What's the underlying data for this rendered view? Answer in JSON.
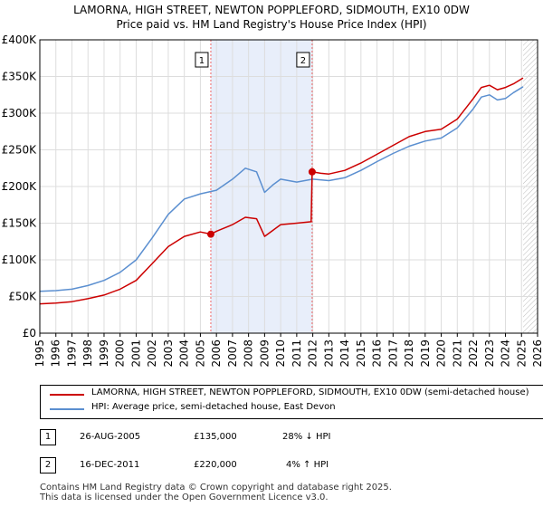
{
  "chart_data": {
    "type": "line",
    "title": "LAMORNA, HIGH STREET, NEWTON POPPLEFORD, SIDMOUTH, EX10 0DW",
    "subtitle": "Price paid vs. HM Land Registry's House Price Index (HPI)",
    "xlabel": "",
    "ylabel": "",
    "xlim": [
      1995,
      2026
    ],
    "ylim": [
      0,
      400000
    ],
    "grid": true,
    "x_ticks": [
      1995,
      1996,
      1997,
      1998,
      1999,
      2000,
      2001,
      2002,
      2003,
      2004,
      2005,
      2006,
      2007,
      2008,
      2009,
      2010,
      2011,
      2012,
      2013,
      2014,
      2015,
      2016,
      2017,
      2018,
      2019,
      2020,
      2021,
      2022,
      2023,
      2024,
      2025,
      2026
    ],
    "y_ticks": [
      {
        "value": 0,
        "label": "£0"
      },
      {
        "value": 50000,
        "label": "£50K"
      },
      {
        "value": 100000,
        "label": "£100K"
      },
      {
        "value": 150000,
        "label": "£150K"
      },
      {
        "value": 200000,
        "label": "£200K"
      },
      {
        "value": 250000,
        "label": "£250K"
      },
      {
        "value": 300000,
        "label": "£300K"
      },
      {
        "value": 350000,
        "label": "£350K"
      },
      {
        "value": 400000,
        "label": "£400K"
      }
    ],
    "shaded_span": {
      "from": 2005.65,
      "to": 2011.96
    },
    "future_hatch_from": 2025.1,
    "series": [
      {
        "name": "LAMORNA, HIGH STREET, NEWTON POPPLEFORD, SIDMOUTH, EX10 0DW (semi-detached house)",
        "color": "#cc0000",
        "x": [
          1995,
          1996,
          1997,
          1998,
          1999,
          2000,
          2001,
          2002,
          2003,
          2004,
          2005,
          2005.65,
          2006,
          2007,
          2007.8,
          2008.5,
          2009,
          2009.5,
          2010,
          2011,
          2011.9,
          2011.96,
          2012.5,
          2013,
          2014,
          2015,
          2016,
          2017,
          2018,
          2019,
          2020,
          2021,
          2022,
          2022.5,
          2023,
          2023.5,
          2024,
          2024.5,
          2025.1
        ],
        "values": [
          40000,
          41000,
          43000,
          47000,
          52000,
          60000,
          72000,
          95000,
          118000,
          132000,
          138000,
          135000,
          139000,
          148000,
          158000,
          156000,
          132000,
          140000,
          148000,
          150000,
          152000,
          220000,
          218000,
          217000,
          222000,
          232000,
          244000,
          256000,
          268000,
          275000,
          278000,
          292000,
          320000,
          335000,
          338000,
          332000,
          335000,
          340000,
          348000
        ]
      },
      {
        "name": "HPI: Average price, semi-detached house, East Devon",
        "color": "#5b8fd0",
        "x": [
          1995,
          1996,
          1997,
          1998,
          1999,
          2000,
          2001,
          2002,
          2003,
          2004,
          2005,
          2006,
          2007,
          2007.8,
          2008.5,
          2009,
          2009.5,
          2010,
          2011,
          2012,
          2013,
          2014,
          2015,
          2016,
          2017,
          2018,
          2019,
          2020,
          2021,
          2022,
          2022.5,
          2023,
          2023.5,
          2024,
          2024.5,
          2025.1
        ],
        "values": [
          57000,
          58000,
          60000,
          65000,
          72000,
          83000,
          100000,
          130000,
          162000,
          183000,
          190000,
          195000,
          210000,
          225000,
          220000,
          192000,
          202000,
          210000,
          206000,
          210000,
          208000,
          212000,
          222000,
          234000,
          245000,
          255000,
          262000,
          266000,
          280000,
          306000,
          322000,
          325000,
          318000,
          320000,
          328000,
          336000
        ]
      }
    ],
    "sales": [
      {
        "id": "1",
        "x": 2005.65,
        "value": 135000
      },
      {
        "id": "2",
        "x": 2011.96,
        "value": 220000
      }
    ]
  },
  "legend": {
    "property_label": "LAMORNA, HIGH STREET, NEWTON POPPLEFORD, SIDMOUTH, EX10 0DW (semi-detached house)",
    "hpi_label": "HPI: Average price, semi-detached house, East Devon"
  },
  "annotations": [
    {
      "num": "1",
      "date": "26-AUG-2005",
      "price": "£135,000",
      "hpi": "28% ↓ HPI"
    },
    {
      "num": "2",
      "date": "16-DEC-2011",
      "price": "£220,000",
      "hpi": "4% ↑ HPI"
    }
  ],
  "footer": {
    "line1": "Contains HM Land Registry data © Crown copyright and database right 2025.",
    "line2": "This data is licensed under the Open Government Licence v3.0."
  }
}
